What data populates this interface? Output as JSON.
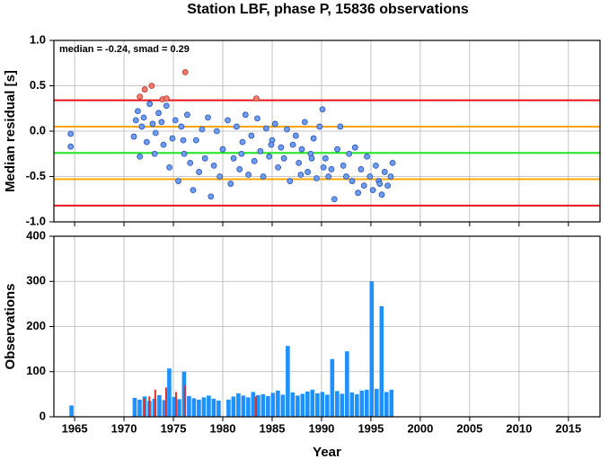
{
  "chart_data": [
    {
      "type": "scatter",
      "title": "Station LBF, phase P, 15836 observations",
      "ylabel": "Median residual [s]",
      "annotation": "median = -0.24, smad = 0.29",
      "xlim": [
        1962.9,
        2018.2
      ],
      "xticks": [
        1965,
        1970,
        1975,
        1980,
        1985,
        1990,
        1995,
        2000,
        2005,
        2010,
        2015
      ],
      "ylim": [
        -1,
        1
      ],
      "yticks": [
        {
          "value": -1,
          "label": "-1.0"
        },
        -0.5,
        {
          "value": 0,
          "label": "0.0"
        },
        0.5,
        {
          "value": 1,
          "label": "1.0"
        }
      ],
      "grid": true,
      "hlines": [
        {
          "value": 0.34,
          "color": "#e8141a"
        },
        {
          "value": 0.05,
          "color": "#ffa500"
        },
        {
          "value": -0.24,
          "color": "#22e622"
        },
        {
          "value": -0.53,
          "color": "#ffa500"
        },
        {
          "value": -0.82,
          "color": "#e8141a"
        }
      ],
      "series": [
        {
          "color": "#6d9cf0",
          "x": [
            1964.6,
            1964.6,
            1971.0,
            1971.2,
            1971.4,
            1971.6,
            1971.8,
            1972.0,
            1972.3,
            1972.6,
            1972.9,
            1973.2,
            1973.5,
            1973.8,
            1974.0,
            1974.3,
            1974.6,
            1974.9,
            1975.2,
            1975.5,
            1975.8,
            1976.1,
            1976.4,
            1976.7,
            1977.0,
            1977.3,
            1977.6,
            1977.9,
            1978.2,
            1978.5,
            1978.8,
            1979.1,
            1979.4,
            1979.7,
            1980.0,
            1980.5,
            1980.8,
            1981.1,
            1981.4,
            1981.7,
            1982.0,
            1982.3,
            1982.6,
            1982.9,
            1983.2,
            1983.5,
            1983.8,
            1984.1,
            1984.4,
            1984.7,
            1985.0,
            1985.3,
            1985.6,
            1985.9,
            1986.2,
            1986.5,
            1986.8,
            1987.1,
            1987.4,
            1987.7,
            1988.0,
            1988.3,
            1988.6,
            1988.9,
            1989.2,
            1989.5,
            1989.8,
            1990.1,
            1990.4,
            1990.7,
            1991.0,
            1991.3,
            1991.6,
            1991.9,
            1992.2,
            1992.5,
            1992.8,
            1993.1,
            1993.4,
            1993.7,
            1994.0,
            1994.3,
            1994.6,
            1994.9,
            1995.2,
            1995.5,
            1995.8,
            1996.1,
            1996.4,
            1996.7,
            1997.0,
            1997.2,
            1973.1,
            1976.0,
            1984.9,
            1989.0,
            1990.2,
            1995.9,
            1987.9,
            1981.9
          ],
          "values": [
            -0.03,
            -0.17,
            -0.06,
            0.12,
            0.22,
            -0.28,
            0.05,
            0.15,
            -0.12,
            0.3,
            0.08,
            -0.02,
            0.2,
            0.1,
            -0.15,
            0.28,
            -0.4,
            -0.08,
            0.12,
            -0.55,
            0.05,
            -0.25,
            0.18,
            -0.35,
            -0.65,
            -0.1,
            -0.45,
            0.02,
            -0.3,
            0.15,
            -0.72,
            -0.38,
            0.0,
            -0.5,
            -0.2,
            0.12,
            -0.58,
            -0.3,
            0.05,
            -0.42,
            -0.12,
            0.18,
            -0.48,
            -0.05,
            -0.33,
            0.14,
            -0.22,
            -0.5,
            0.03,
            -0.28,
            -0.1,
            0.08,
            -0.4,
            -0.18,
            -0.3,
            0.02,
            -0.55,
            -0.15,
            -0.05,
            -0.35,
            -0.2,
            0.1,
            -0.45,
            -0.25,
            -0.08,
            -0.52,
            0.05,
            0.24,
            -0.3,
            -0.5,
            -0.42,
            -0.75,
            -0.2,
            0.05,
            -0.38,
            -0.5,
            -0.25,
            -0.55,
            -0.18,
            -0.68,
            -0.42,
            -0.6,
            -0.28,
            -0.5,
            -0.65,
            -0.38,
            -0.55,
            -0.7,
            -0.45,
            -0.6,
            -0.5,
            -0.35,
            -0.25,
            -0.1,
            -0.15,
            -0.3,
            -0.4,
            -0.58,
            -0.48,
            -0.25
          ]
        },
        {
          "color": "#f47a6e",
          "x": [
            1971.6,
            1972.1,
            1972.8,
            1973.9,
            1974.3,
            1976.2,
            1983.4
          ],
          "values": [
            0.38,
            0.46,
            0.5,
            0.35,
            0.36,
            0.65,
            0.36
          ]
        }
      ]
    },
    {
      "type": "bar",
      "ylabel": "Observations",
      "xlabel": "Year",
      "xlim": [
        1962.9,
        2018.2
      ],
      "xticks": [
        1965,
        1970,
        1975,
        1980,
        1985,
        1990,
        1995,
        2000,
        2005,
        2010,
        2015
      ],
      "ylim": [
        0,
        400
      ],
      "yticks": [
        0,
        100,
        200,
        300,
        400
      ],
      "grid": true,
      "series": [
        {
          "color": "#1e90ff",
          "x": [
            1964.6,
            1971.0,
            1971.5,
            1972.0,
            1972.5,
            1973.0,
            1973.5,
            1974.0,
            1974.5,
            1975.0,
            1975.5,
            1976.0,
            1976.5,
            1977.0,
            1977.5,
            1978.0,
            1978.5,
            1979.0,
            1979.5,
            1980.5,
            1981.0,
            1981.5,
            1982.0,
            1982.5,
            1983.0,
            1983.5,
            1984.0,
            1984.5,
            1985.0,
            1985.5,
            1986.0,
            1986.5,
            1987.0,
            1987.5,
            1988.0,
            1988.5,
            1989.0,
            1989.5,
            1990.0,
            1990.5,
            1991.0,
            1991.5,
            1992.0,
            1992.5,
            1993.0,
            1993.5,
            1994.0,
            1994.5,
            1995.0,
            1995.5,
            1996.0,
            1996.5,
            1997.0
          ],
          "values": [
            25,
            42,
            38,
            45,
            35,
            40,
            48,
            37,
            107,
            44,
            39,
            100,
            46,
            41,
            38,
            43,
            47,
            40,
            36,
            38,
            45,
            52,
            47,
            43,
            55,
            48,
            50,
            46,
            53,
            58,
            49,
            157,
            54,
            47,
            51,
            56,
            60,
            52,
            55,
            49,
            128,
            57,
            51,
            145,
            54,
            50,
            58,
            60,
            300,
            62,
            245,
            55,
            60
          ]
        },
        {
          "color": "#e0302a",
          "x": [
            1972.1,
            1972.6,
            1973.2,
            1974.3,
            1975.3,
            1976.2,
            1983.4
          ],
          "values": [
            40,
            45,
            60,
            65,
            55,
            70,
            45
          ]
        }
      ]
    }
  ]
}
